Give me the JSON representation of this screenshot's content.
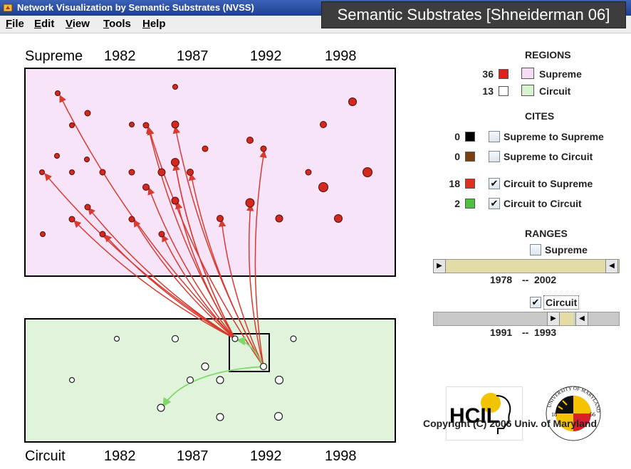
{
  "window": {
    "title": "Network Visualization by Semantic Substrates (NVSS)"
  },
  "overlay_title": "Semantic Substrates [Shneiderman 06]",
  "menu": [
    "File",
    "Edit",
    "View",
    "Tools",
    "Help"
  ],
  "supreme_axis": {
    "label": "Supreme",
    "years": [
      "1982",
      "1987",
      "1992",
      "1998"
    ]
  },
  "circuit_axis": {
    "label": "Circuit",
    "years": [
      "1982",
      "1987",
      "1992",
      "1998"
    ]
  },
  "regions": {
    "header": "REGIONS",
    "items": [
      {
        "count": "36",
        "color": "#e02020",
        "region_color": "#f5dcf5",
        "label": "Supreme"
      },
      {
        "count": "13",
        "color": "#ffffff",
        "region_color": "#d9f2d2",
        "label": "Circuit"
      }
    ]
  },
  "cites": {
    "header": "CITES",
    "items": [
      {
        "count": "0",
        "color": "#000000",
        "label": "Supreme to Supreme",
        "checked": false
      },
      {
        "count": "0",
        "color": "#7a4010",
        "label": "Supreme to Circuit",
        "checked": false
      },
      {
        "count": "18",
        "color": "#e03020",
        "label": "Circuit to Supreme",
        "checked": true
      },
      {
        "count": "2",
        "color": "#50c040",
        "label": "Circuit to Circuit",
        "checked": true
      }
    ]
  },
  "ranges": {
    "header": "RANGES",
    "supreme": {
      "label": "Supreme",
      "checked": false,
      "from": "1978",
      "to": "2002",
      "sep": "--"
    },
    "circuit": {
      "label": "Circuit",
      "checked": true,
      "from": "1991",
      "to": "1993",
      "sep": "--"
    }
  },
  "logos": {
    "hcil": "HCIL",
    "umd_text": "UNIVERSITY OF MARYLAND",
    "umd_year_left": "18",
    "umd_year_right": "56"
  },
  "copyright": "Copyright (C) 2006   Univ. of Maryland",
  "colors": {
    "supreme_region": "#f8e4f8",
    "circuit_region": "#e0f4dc",
    "citation_arrow": "#d83a30",
    "circuit_arrow": "#7fd86a",
    "slider_fill": "#e3dca6",
    "slider_bg": "#c8c8c8"
  },
  "icons": {
    "check": "✔",
    "left": "◀",
    "right": "▶"
  }
}
